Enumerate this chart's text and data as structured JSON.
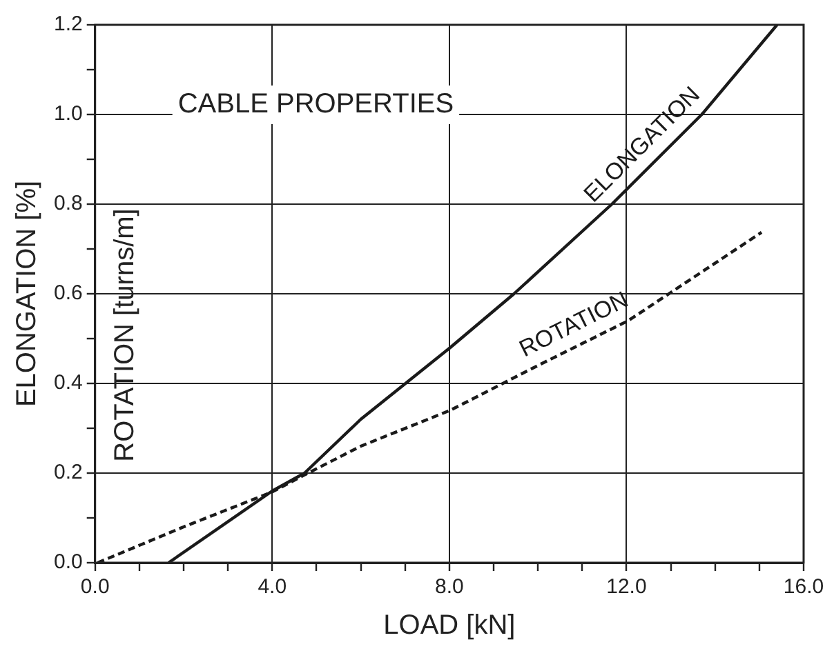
{
  "chart_data": {
    "type": "line",
    "title": "CABLE PROPERTIES",
    "xlabel": "LOAD [kN]",
    "ylabel": "ELONGATION [%]",
    "annotations": [
      "ROTATION [turns/m]"
    ],
    "xlim": [
      0,
      16
    ],
    "ylim": [
      0,
      1.2
    ],
    "xticks": [
      {
        "value": 0,
        "label": "0.0"
      },
      {
        "value": 1,
        "label": null
      },
      {
        "value": 2,
        "label": null
      },
      {
        "value": 3,
        "label": null
      },
      {
        "value": 4,
        "label": "4.0"
      },
      {
        "value": 5,
        "label": null
      },
      {
        "value": 6,
        "label": null
      },
      {
        "value": 7,
        "label": null
      },
      {
        "value": 8,
        "label": "8.0"
      },
      {
        "value": 9,
        "label": null
      },
      {
        "value": 10,
        "label": null
      },
      {
        "value": 11,
        "label": null
      },
      {
        "value": 12,
        "label": "12.0"
      },
      {
        "value": 13,
        "label": null
      },
      {
        "value": 14,
        "label": null
      },
      {
        "value": 15,
        "label": null
      },
      {
        "value": 16,
        "label": "16.0"
      }
    ],
    "yticks": [
      {
        "value": 0,
        "label": "0.0"
      },
      {
        "value": 0.1,
        "label": null
      },
      {
        "value": 0.2,
        "label": "0.2"
      },
      {
        "value": 0.3,
        "label": null
      },
      {
        "value": 0.4,
        "label": "0.4"
      },
      {
        "value": 0.5,
        "label": null
      },
      {
        "value": 0.6,
        "label": "0.6"
      },
      {
        "value": 0.7,
        "label": null
      },
      {
        "value": 0.8,
        "label": "0.8"
      },
      {
        "value": 0.9,
        "label": null
      },
      {
        "value": 1.0,
        "label": "1.0"
      },
      {
        "value": 1.1,
        "label": null
      },
      {
        "value": 1.2,
        "label": "1.2"
      }
    ],
    "grid": true,
    "series": [
      {
        "name": "ELONGATION",
        "color": "#1a1a1a",
        "line_style": "solid",
        "x": [
          1.66,
          4.0,
          4.73,
          6.0,
          8.02,
          9.46,
          11.67,
          13.7,
          15.4
        ],
        "values": [
          0,
          0.16,
          0.2,
          0.32,
          0.48,
          0.6,
          0.8,
          1.0,
          1.2
        ]
      },
      {
        "name": "ROTATION",
        "color": "#1a1a1a",
        "line_style": "dashed",
        "x": [
          0.06,
          2.0,
          4.0,
          4.73,
          6.0,
          8.02,
          10.0,
          12.04,
          15.05
        ],
        "values": [
          0,
          0.08,
          0.158,
          0.196,
          0.26,
          0.34,
          0.44,
          0.54,
          0.737
        ]
      }
    ]
  }
}
